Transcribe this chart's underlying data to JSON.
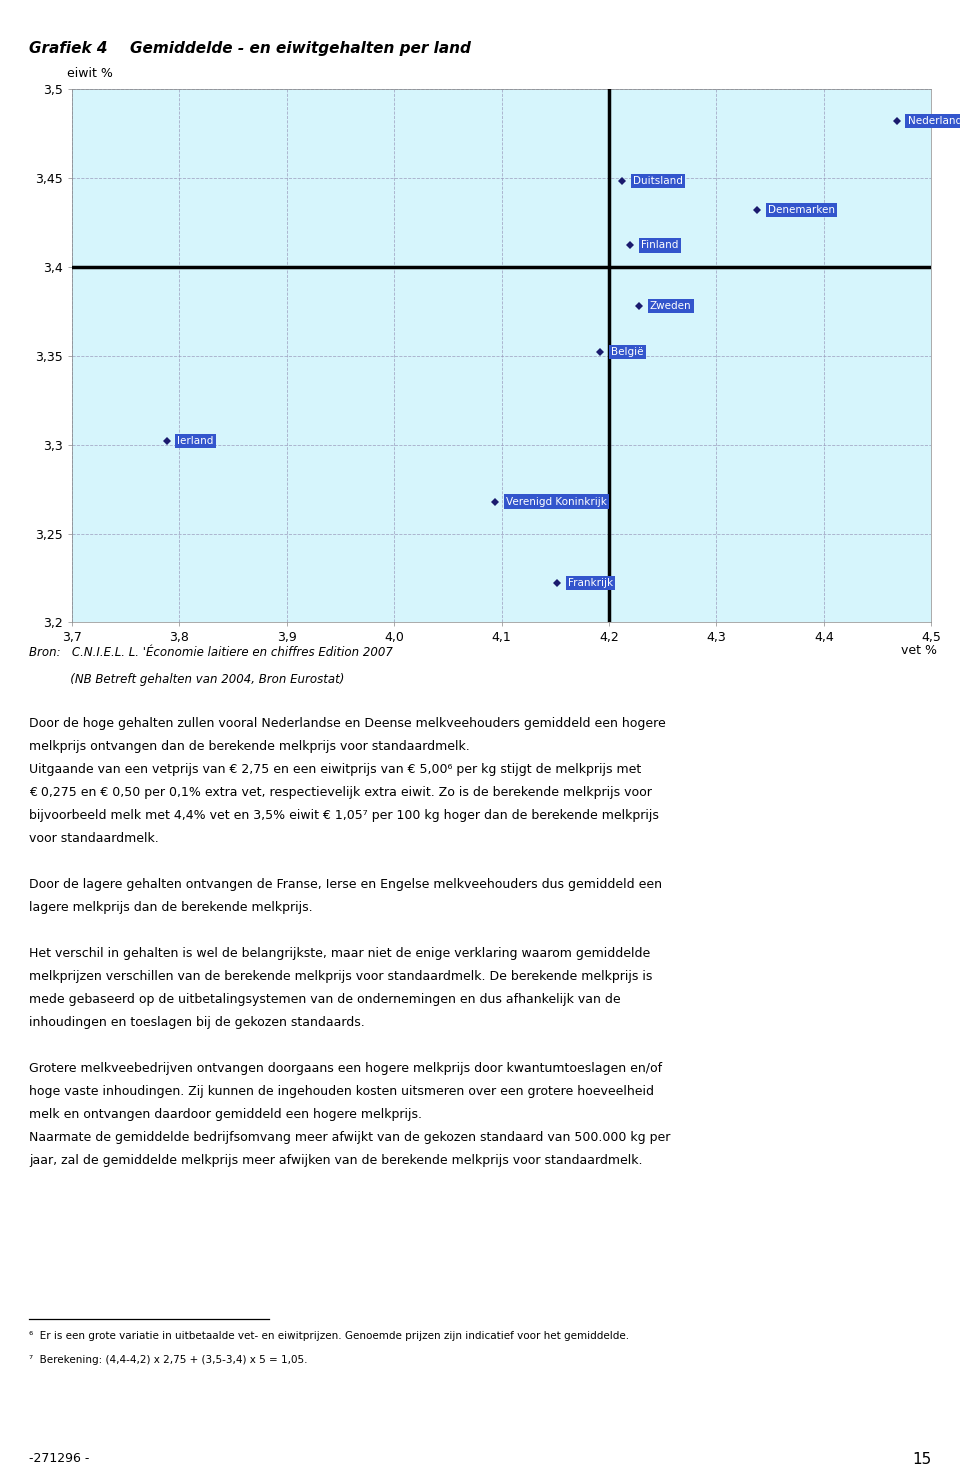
{
  "title_prefix": "Grafiek 4",
  "title_main": "Gemiddelde - en eiwitgehalten per land",
  "xlabel": "vet %",
  "ylabel": "eiwit %",
  "xlim": [
    3.7,
    4.5
  ],
  "ylim": [
    3.2,
    3.5
  ],
  "xticks": [
    3.7,
    3.8,
    3.9,
    4.0,
    4.1,
    4.2,
    4.3,
    4.4,
    4.5
  ],
  "yticks": [
    3.2,
    3.25,
    3.3,
    3.35,
    3.4,
    3.45,
    3.5
  ],
  "ref_x": 4.2,
  "ref_y": 3.4,
  "outer_bg": "#c8ecf4",
  "plot_bg": "#d6f5fc",
  "marker_color": "#1a1a6e",
  "label_bg": "#3355cc",
  "label_fg": "#ffffff",
  "ref_color": "#000000",
  "grid_color": "#9999bb",
  "points": [
    {
      "name": "Nederland",
      "vet": 4.468,
      "eiwit": 3.482
    },
    {
      "name": "Duitsland",
      "vet": 4.212,
      "eiwit": 3.448
    },
    {
      "name": "Denemarken",
      "vet": 4.338,
      "eiwit": 3.432
    },
    {
      "name": "Finland",
      "vet": 4.22,
      "eiwit": 3.412
    },
    {
      "name": "Zweden",
      "vet": 4.228,
      "eiwit": 3.378
    },
    {
      "name": "België",
      "vet": 4.192,
      "eiwit": 3.352
    },
    {
      "name": "Ierland",
      "vet": 3.788,
      "eiwit": 3.302
    },
    {
      "name": "Verenigd Koninkrijk",
      "vet": 4.094,
      "eiwit": 3.268
    },
    {
      "name": "Frankrijk",
      "vet": 4.152,
      "eiwit": 3.222
    }
  ],
  "bron_line1": "Bron:   C.N.I.E.L. L. 'Économie laitiere en chiffres Edition 2007",
  "bron_line2": "           (NB Betreft gehalten van 2004, Bron Eurostat)",
  "body_lines": [
    "Door de hoge gehalten zullen vooral Nederlandse en Deense melkveehouders gemiddeld een hogere",
    "melkprijs ontvangen dan de berekende melkprijs voor standaardmelk.",
    "Uitgaande van een vetprijs van € 2,75 en een eiwitprijs van € 5,00⁶ per kg stijgt de melkprijs met",
    "€ 0,275 en € 0,50 per 0,1% extra vet, respectievelijk extra eiwit. Zo is de berekende melkprijs voor",
    "bijvoorbeeld melk met 4,4% vet en 3,5% eiwit € 1,05⁷ per 100 kg hoger dan de berekende melkprijs",
    "voor standaardmelk.",
    "",
    "Door de lagere gehalten ontvangen de Franse, Ierse en Engelse melkveehouders dus gemiddeld een",
    "lagere melkprijs dan de berekende melkprijs.",
    "",
    "Het verschil in gehalten is wel de belangrijkste, maar niet de enige verklaring waarom gemiddelde",
    "melkprijzen verschillen van de berekende melkprijs voor standaardmelk. De berekende melkprijs is",
    "mede gebaseerd op de uitbetalingsystemen van de ondernemingen en dus afhankelijk van de",
    "inhoudingen en toeslagen bij de gekozen standaards.",
    "",
    "Grotere melkveebedrijven ontvangen doorgaans een hogere melkprijs door kwantumtoeslagen en/of",
    "hoge vaste inhoudingen. Zij kunnen de ingehouden kosten uitsmeren over een grotere hoeveelheid",
    "melk en ontvangen daardoor gemiddeld een hogere melkprijs.",
    "Naarmate de gemiddelde bedrijfsomvang meer afwijkt van de gekozen standaard van 500.000 kg per",
    "jaar, zal de gemiddelde melkprijs meer afwijken van de berekende melkprijs voor standaardmelk."
  ],
  "fn1": "⁶  Er is een grote variatie in uitbetaalde vet- en eiwitprijzen. Genoemde prijzen zijn indicatief voor het gemiddelde.",
  "fn2": "⁷  Berekening: (4,4-4,2) x 2,75 + (3,5-3,4) x 5 = 1,05.",
  "page_ref": "-271296 -",
  "page_num": "15"
}
